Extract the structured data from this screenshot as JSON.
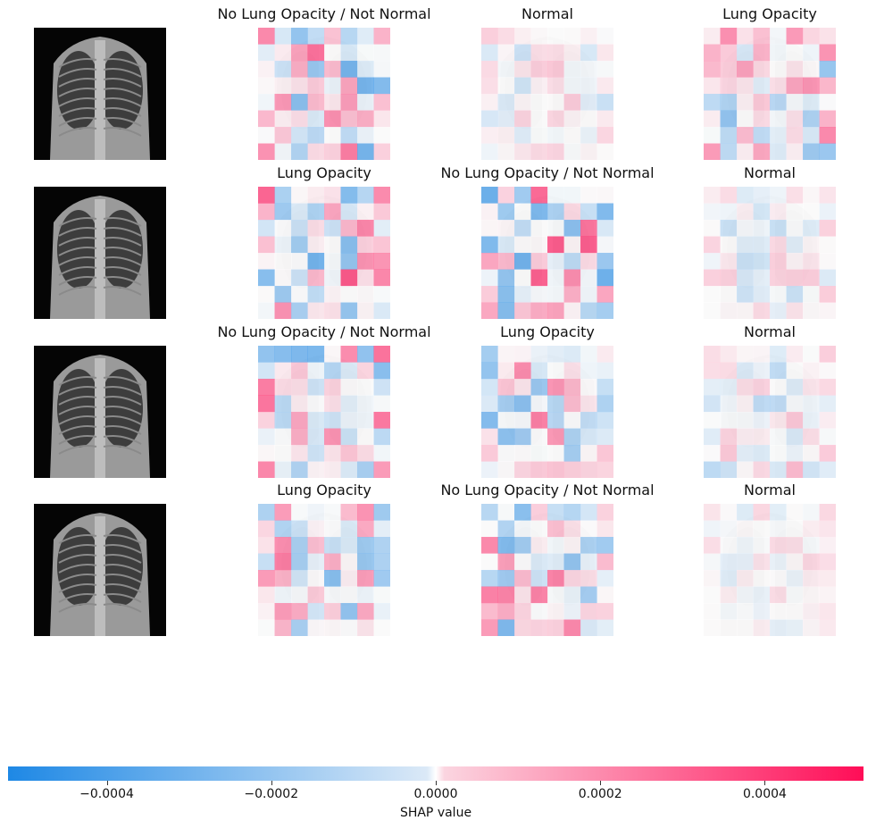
{
  "chart_data": {
    "type": "heatmap",
    "description": "SHAP explanations for 4 chest X-ray images; each row shows the input image followed by SHAP heatmaps for 3 classes",
    "rows": [
      {
        "panels": [
          {
            "title": "No Lung Opacity / Not Normal",
            "intensity": 0.35,
            "seed": 11
          },
          {
            "title": "Normal",
            "intensity": 0.12,
            "seed": 23
          },
          {
            "title": "Lung Opacity",
            "intensity": 0.25,
            "seed": 37
          }
        ]
      },
      {
        "panels": [
          {
            "title": "Lung Opacity",
            "intensity": 0.35,
            "seed": 41
          },
          {
            "title": "No Lung Opacity / Not Normal",
            "intensity": 0.35,
            "seed": 53
          },
          {
            "title": "Normal",
            "intensity": 0.12,
            "seed": 67
          }
        ]
      },
      {
        "panels": [
          {
            "title": "No Lung Opacity / Not Normal",
            "intensity": 0.3,
            "seed": 71
          },
          {
            "title": "Lung Opacity",
            "intensity": 0.28,
            "seed": 83
          },
          {
            "title": "Normal",
            "intensity": 0.15,
            "seed": 97
          }
        ]
      },
      {
        "panels": [
          {
            "title": "Lung Opacity",
            "intensity": 0.3,
            "seed": 101
          },
          {
            "title": "No Lung Opacity / Not Normal",
            "intensity": 0.3,
            "seed": 113
          },
          {
            "title": "Normal",
            "intensity": 0.08,
            "seed": 127
          }
        ]
      }
    ],
    "colorbar": {
      "label": "SHAP value",
      "ticks": [
        "−0.0004",
        "−0.0002",
        "0.0000",
        "0.0002",
        "0.0004"
      ],
      "tick_values": [
        -0.0004,
        -0.0002,
        0.0,
        0.0002,
        0.0004
      ],
      "range": [
        -0.00052,
        0.00052
      ],
      "negative_color": "#1e88e5",
      "positive_color": "#ff0d57"
    }
  }
}
